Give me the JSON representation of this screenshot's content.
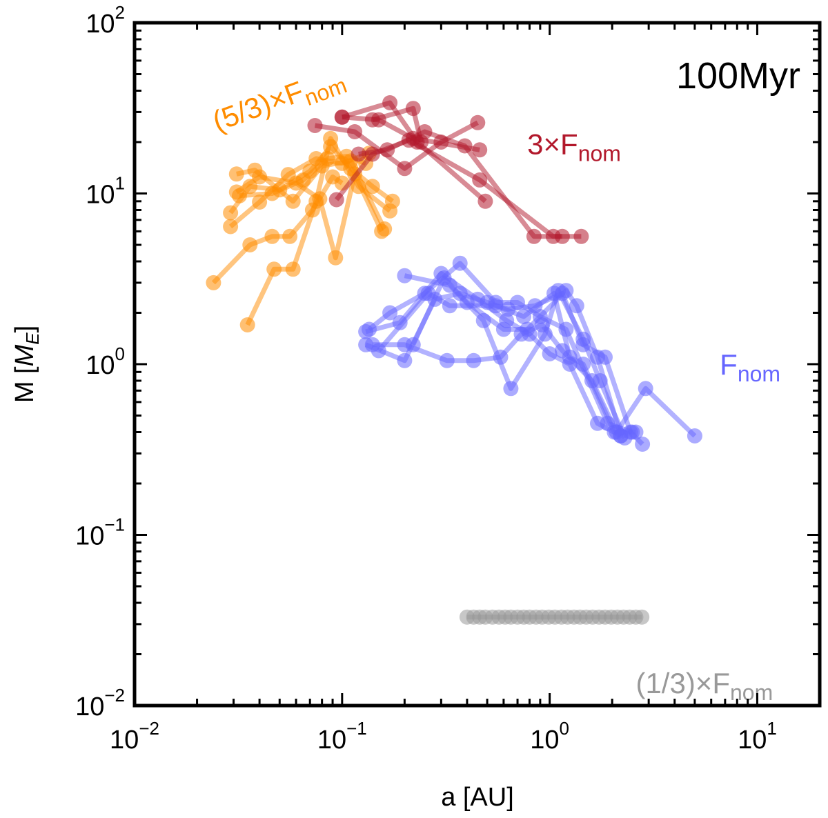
{
  "chart_data": {
    "type": "scatter",
    "title": "",
    "annotation": "100Myr",
    "xlabel": "a [AU]",
    "ylabel_prefix": "M [",
    "ylabel_var": "M",
    "ylabel_sub": "E",
    "ylabel_suffix": "]",
    "xscale": "log",
    "yscale": "log",
    "xlim": [
      0.01,
      20
    ],
    "ylim": [
      0.01,
      100
    ],
    "xticks": [
      {
        "value": 0.01,
        "base": "10",
        "exp": "−2"
      },
      {
        "value": 0.1,
        "base": "10",
        "exp": "−1"
      },
      {
        "value": 1,
        "base": "10",
        "exp": "0"
      },
      {
        "value": 10,
        "base": "10",
        "exp": "1"
      }
    ],
    "yticks": [
      {
        "value": 0.01,
        "base": "10",
        "exp": "−2"
      },
      {
        "value": 0.1,
        "base": "10",
        "exp": "−1"
      },
      {
        "value": 1,
        "base": "10",
        "exp": "0"
      },
      {
        "value": 10,
        "base": "10",
        "exp": "1"
      },
      {
        "value": 100,
        "base": "10",
        "exp": "2"
      }
    ],
    "series": [
      {
        "name": "(5/3)×F_nom",
        "label_main": "(5/3)×F",
        "label_sub": "nom",
        "label_pos": [
          0.025,
          23
        ],
        "label_rotate": -20,
        "color": "#ff8c00",
        "systems": [
          [
            [
              0.024,
              3.0
            ],
            [
              0.036,
              5.0
            ],
            [
              0.046,
              5.6
            ],
            [
              0.056,
              5.6
            ],
            [
              0.072,
              8.0
            ],
            [
              0.09,
              12.5
            ],
            [
              0.1,
              11.5
            ]
          ],
          [
            [
              0.031,
              10.2
            ],
            [
              0.04,
              12.5
            ],
            [
              0.06,
              11.5
            ],
            [
              0.078,
              9.3
            ],
            [
              0.093,
              4.2
            ],
            [
              0.115,
              13.0
            ],
            [
              0.155,
              6.0
            ]
          ],
          [
            [
              0.029,
              6.4
            ],
            [
              0.04,
              8.9
            ],
            [
              0.055,
              12.9
            ],
            [
              0.075,
              16.0
            ],
            [
              0.1,
              15.0
            ],
            [
              0.135,
              17.2
            ]
          ],
          [
            [
              0.035,
              1.7
            ],
            [
              0.047,
              3.6
            ],
            [
              0.058,
              3.6
            ],
            [
              0.075,
              9.0
            ],
            [
              0.088,
              21.0
            ],
            [
              0.12,
              11.0
            ],
            [
              0.17,
              7.9
            ]
          ],
          [
            [
              0.031,
              13.0
            ],
            [
              0.038,
              13.7
            ],
            [
              0.058,
              9.0
            ],
            [
              0.08,
              14.5
            ],
            [
              0.11,
              15.5
            ],
            [
              0.16,
              6.2
            ]
          ],
          [
            [
              0.029,
              7.7
            ],
            [
              0.036,
              11.0
            ],
            [
              0.05,
              10.5
            ],
            [
              0.07,
              13.5
            ],
            [
              0.088,
              18.8
            ],
            [
              0.11,
              14.0
            ],
            [
              0.14,
              11.0
            ],
            [
              0.175,
              9.0
            ]
          ],
          [
            [
              0.032,
              9.7
            ],
            [
              0.046,
              10.0
            ],
            [
              0.065,
              12.0
            ],
            [
              0.085,
              16.0
            ],
            [
              0.105,
              16.5
            ],
            [
              0.13,
              15.0
            ]
          ]
        ]
      },
      {
        "name": "3×F_nom",
        "label_main": "3×F",
        "label_sub": "nom",
        "label_pos": [
          0.78,
          17
        ],
        "label_rotate": 0,
        "color": "#b2182b",
        "systems": [
          [
            [
              0.074,
              25.0
            ],
            [
              0.115,
              23.0
            ],
            [
              0.2,
              14.0
            ],
            [
              0.3,
              20.0
            ],
            [
              0.45,
              26.0
            ]
          ],
          [
            [
              0.1,
              28.0
            ],
            [
              0.15,
              27.0
            ],
            [
              0.22,
              21.0
            ],
            [
              0.46,
              18.0
            ]
          ],
          [
            [
              0.12,
              17.0
            ],
            [
              0.165,
              18.0
            ],
            [
              0.25,
              23.0
            ],
            [
              0.39,
              19.0
            ],
            [
              0.84,
              5.6
            ],
            [
              1.42,
              5.6
            ]
          ],
          [
            [
              0.094,
              9.2
            ],
            [
              0.14,
              17.0
            ],
            [
              0.21,
              20.5
            ],
            [
              0.46,
              12.0
            ],
            [
              1.04,
              5.6
            ],
            [
              1.15,
              5.6
            ]
          ],
          [
            [
              0.1,
              28.0
            ],
            [
              0.17,
              34.0
            ],
            [
              0.23,
              20.0
            ],
            [
              0.49,
              9.0
            ]
          ],
          [
            [
              0.14,
              27.0
            ],
            [
              0.22,
              31.5
            ],
            [
              0.24,
              20.0
            ]
          ]
        ]
      },
      {
        "name": "F_nom",
        "label_main": "F",
        "label_sub": "nom",
        "label_pos": [
          6.6,
          0.87
        ],
        "label_rotate": 0,
        "color": "#6666ff",
        "systems": [
          [
            [
              0.13,
              1.3
            ],
            [
              0.2,
              1.05
            ],
            [
              0.28,
              2.4
            ],
            [
              0.37,
              2.6
            ],
            [
              0.5,
              2.3
            ],
            [
              0.63,
              2.1
            ],
            [
              0.85,
              2.2
            ],
            [
              1.15,
              2.6
            ],
            [
              1.45,
              1.3
            ],
            [
              1.85,
              1.1
            ],
            [
              2.45,
              0.4
            ],
            [
              2.8,
              0.34
            ]
          ],
          [
            [
              0.14,
              1.3
            ],
            [
              0.2,
              1.3
            ],
            [
              0.32,
              1.05
            ],
            [
              0.43,
              1.05
            ],
            [
              0.58,
              1.1
            ],
            [
              0.73,
              1.5
            ],
            [
              0.92,
              1.7
            ],
            [
              1.15,
              1.2
            ],
            [
              1.6,
              0.8
            ],
            [
              2.1,
              0.4
            ],
            [
              2.9,
              0.72
            ],
            [
              5.0,
              0.38
            ]
          ],
          [
            [
              0.135,
              1.6
            ],
            [
              0.17,
              2.0
            ],
            [
              0.25,
              2.6
            ],
            [
              0.37,
              3.9
            ],
            [
              0.55,
              2.3
            ],
            [
              0.7,
              2.3
            ],
            [
              0.9,
              1.9
            ],
            [
              1.2,
              1.6
            ],
            [
              1.9,
              0.45
            ],
            [
              2.5,
              0.4
            ]
          ],
          [
            [
              0.13,
              1.55
            ],
            [
              0.19,
              1.75
            ],
            [
              0.3,
              3.4
            ],
            [
              0.45,
              2.4
            ],
            [
              0.62,
              1.8
            ],
            [
              0.8,
              1.5
            ],
            [
              1.0,
              1.15
            ],
            [
              1.25,
              1.0
            ],
            [
              1.7,
              0.45
            ],
            [
              2.2,
              0.38
            ]
          ],
          [
            [
              0.2,
              3.3
            ],
            [
              0.33,
              2.9
            ],
            [
              0.48,
              1.8
            ],
            [
              0.65,
              0.72
            ],
            [
              0.95,
              1.5
            ],
            [
              1.1,
              2.7
            ],
            [
              1.45,
              1.4
            ],
            [
              1.75,
              0.8
            ],
            [
              2.3,
              0.37
            ]
          ],
          [
            [
              0.15,
              1.2
            ],
            [
              0.26,
              2.6
            ],
            [
              0.33,
              2.2
            ],
            [
              0.55,
              2.2
            ],
            [
              0.75,
              1.9
            ],
            [
              1.05,
              2.6
            ],
            [
              1.25,
              1.1
            ],
            [
              1.45,
              1.0
            ],
            [
              2.05,
              0.4
            ],
            [
              2.6,
              0.4
            ]
          ],
          [
            [
              0.22,
              1.3
            ],
            [
              0.31,
              3.2
            ],
            [
              0.4,
              2.3
            ],
            [
              0.6,
              1.6
            ],
            [
              0.78,
              1.6
            ],
            [
              1.2,
              2.7
            ],
            [
              1.35,
              2.2
            ],
            [
              1.7,
              1.1
            ],
            [
              2.2,
              0.38
            ]
          ]
        ]
      },
      {
        "name": "(1/3)×F_nom",
        "label_main": "(1/3)×F",
        "label_sub": "nom",
        "label_pos": [
          2.6,
          0.0118
        ],
        "label_rotate": 0,
        "color": "#999999",
        "systems": [
          [
            [
              0.4,
              0.033
            ],
            [
              0.43,
              0.033
            ],
            [
              0.46,
              0.033
            ],
            [
              0.49,
              0.033
            ],
            [
              0.53,
              0.033
            ],
            [
              0.57,
              0.033
            ],
            [
              0.61,
              0.033
            ],
            [
              0.65,
              0.033
            ],
            [
              0.7,
              0.033
            ],
            [
              0.75,
              0.033
            ],
            [
              0.8,
              0.033
            ],
            [
              0.86,
              0.033
            ],
            [
              0.92,
              0.033
            ],
            [
              0.99,
              0.033
            ],
            [
              1.06,
              0.033
            ],
            [
              1.14,
              0.033
            ],
            [
              1.22,
              0.033
            ],
            [
              1.31,
              0.033
            ],
            [
              1.4,
              0.033
            ],
            [
              1.5,
              0.033
            ],
            [
              1.61,
              0.033
            ],
            [
              1.73,
              0.033
            ],
            [
              1.85,
              0.033
            ],
            [
              1.98,
              0.033
            ],
            [
              2.12,
              0.033
            ],
            [
              2.27,
              0.033
            ],
            [
              2.43,
              0.033
            ],
            [
              2.6,
              0.033
            ],
            [
              2.78,
              0.033
            ]
          ]
        ]
      }
    ]
  }
}
